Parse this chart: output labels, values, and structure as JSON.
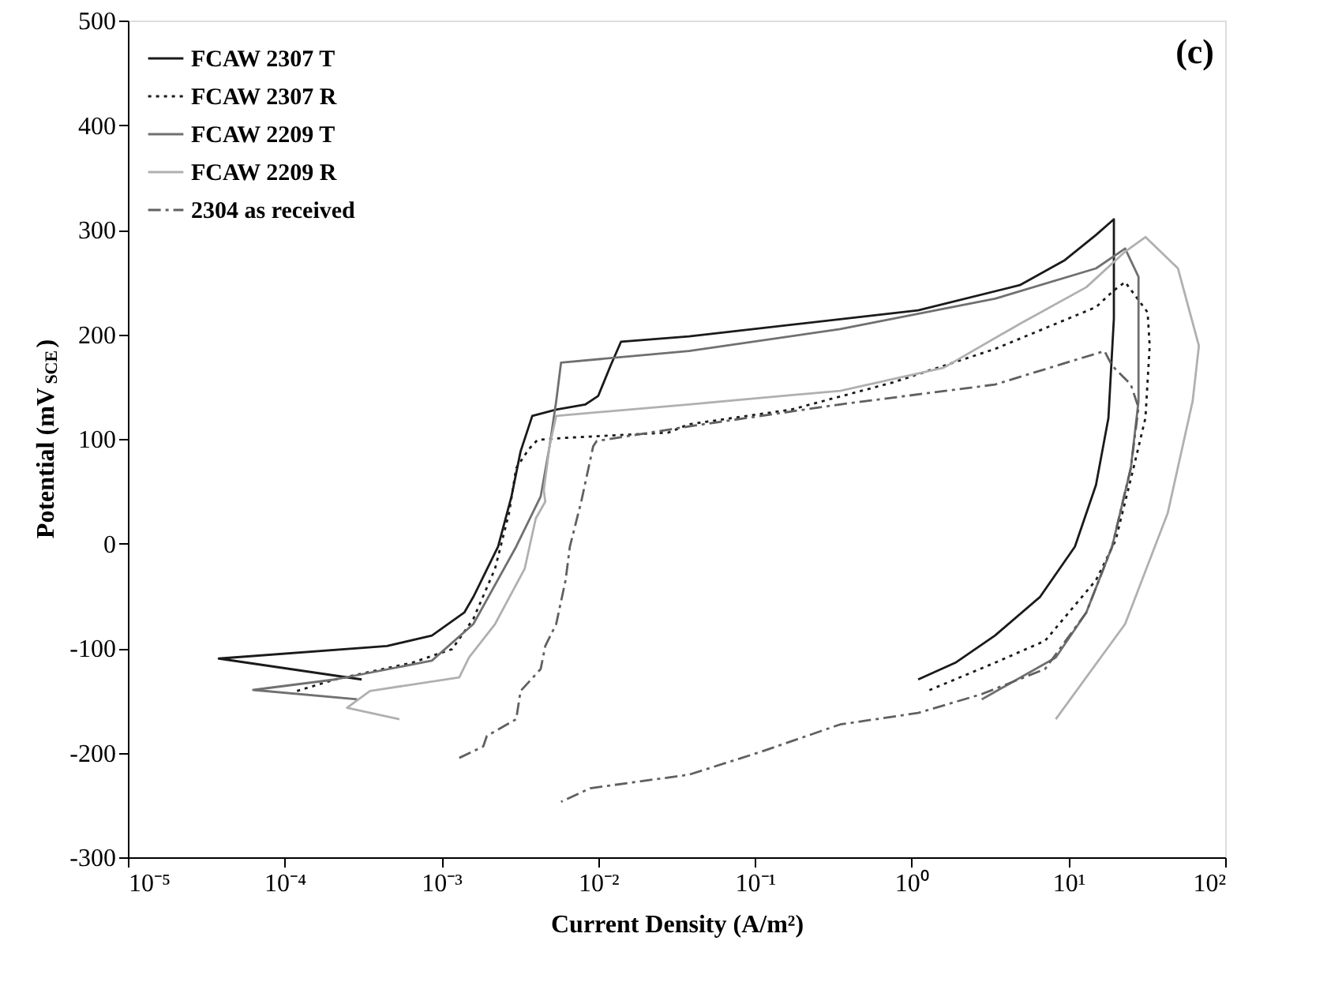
{
  "chart_data": {
    "type": "line",
    "xlabel": "Current Density (A/m²)",
    "ylabel": "Potential (mV$_{SCE}$)",
    "annotations": [
      "(c)"
    ],
    "log": "x",
    "xlim": [
      1e-05,
      100
    ],
    "xticks": [
      {
        "value": 1e-05,
        "label": "10⁻⁵"
      },
      {
        "value": 0.0001,
        "label": "10⁻⁴"
      },
      {
        "value": 0.001,
        "label": "10⁻³"
      },
      {
        "value": 0.01,
        "label": "10⁻²"
      },
      {
        "value": 0.1,
        "label": "10⁻¹"
      },
      {
        "value": 1,
        "label": "10⁰"
      },
      {
        "value": 10,
        "label": "10¹"
      },
      {
        "value": 100,
        "label": "10²"
      }
    ],
    "ylim": [
      -300,
      500
    ],
    "yticks": [
      -300,
      -200,
      -100,
      0,
      100,
      200,
      300,
      400,
      500
    ],
    "grid": false,
    "legend": "top left",
    "marker": "none",
    "series": [
      {
        "name": "FCAW 2307 T",
        "color": "#1a1a1a",
        "line_style": "solid",
        "x": [
          0.00031,
          3.8e-05,
          0.00045,
          0.00087,
          0.0014,
          0.0016,
          0.0023,
          0.0028,
          0.0032,
          0.0038,
          0.0054,
          0.0083,
          0.01,
          0.012,
          0.014,
          0.038,
          1.1,
          4.9,
          9.5,
          15,
          19.5,
          19.5,
          18,
          15,
          11,
          6.6,
          3.4,
          1.9,
          1.1
        ],
        "values": [
          -130,
          -110,
          -98,
          -88,
          -66,
          -51,
          -3,
          45,
          88,
          122,
          128,
          133,
          141,
          170,
          193,
          198,
          223,
          247,
          271,
          295,
          310,
          215,
          120,
          56,
          -3,
          -51,
          -88,
          -114,
          -130
        ]
      },
      {
        "name": "FCAW 2307 R",
        "color": "#1a1a1a",
        "line_style": "dotted",
        "x": [
          0.00012,
          0.00021,
          0.00065,
          0.00117,
          0.0016,
          0.0022,
          0.0027,
          0.003,
          0.0036,
          0.0041,
          0.0062,
          0.028,
          0.038,
          0.17,
          0.76,
          3.4,
          15,
          19.5,
          23,
          32,
          33,
          31,
          26,
          20,
          15,
          7.1,
          3.4,
          1.26
        ],
        "values": [
          -141,
          -130,
          -114,
          -101,
          -72,
          -24,
          29,
          72,
          90,
          99,
          101,
          106,
          114,
          128,
          154,
          186,
          226,
          242,
          250,
          221,
          189,
          120,
          72,
          3,
          -35,
          -93,
          -114,
          -141
        ]
      },
      {
        "name": "FCAW 2209 T",
        "color": "#707070",
        "line_style": "solid",
        "x": [
          0.00029,
          6.3e-05,
          0.00021,
          0.00087,
          0.0016,
          0.003,
          0.0043,
          0.0049,
          0.0054,
          0.0058,
          0.038,
          0.35,
          3.4,
          15,
          23,
          28,
          28,
          25,
          19,
          13,
          8.3,
          2.8
        ],
        "values": [
          -149,
          -140,
          -130,
          -112,
          -77,
          -3,
          45,
          93,
          136,
          173,
          184,
          205,
          234,
          263,
          282,
          255,
          136,
          72,
          -3,
          -66,
          -109,
          -149
        ]
      },
      {
        "name": "FCAW 2209 R",
        "color": "#b0b0b0",
        "line_style": "solid",
        "x": [
          0.00054,
          0.00025,
          0.00035,
          0.0013,
          0.0015,
          0.0022,
          0.0034,
          0.004,
          0.0046,
          0.0045,
          0.0049,
          0.0054,
          0.038,
          0.35,
          1.6,
          4.9,
          13,
          23,
          31,
          50,
          68,
          62,
          43,
          23,
          8.3
        ],
        "values": [
          -168,
          -157,
          -141,
          -128,
          -109,
          -77,
          -24,
          24,
          40,
          51,
          93,
          122,
          133,
          146,
          168,
          210,
          245,
          279,
          293,
          263,
          189,
          136,
          29,
          -77,
          -168
        ]
      },
      {
        "name": "2304 as received",
        "color": "#606060",
        "line_style": "dashdot",
        "x": [
          0.0013,
          0.00185,
          0.00195,
          0.003,
          0.0032,
          0.0043,
          0.0046,
          0.0054,
          0.0062,
          0.0066,
          0.0078,
          0.0093,
          0.0098,
          0.038,
          0.35,
          3.4,
          17,
          19,
          25,
          28,
          25,
          19,
          13,
          7.1,
          2.8,
          1.1,
          0.35,
          0.11,
          0.038,
          0.0089,
          0.0058
        ],
        "values": [
          -205,
          -194,
          -184,
          -168,
          -141,
          -120,
          -98,
          -77,
          -35,
          -3,
          40,
          93,
          98,
          112,
          133,
          152,
          184,
          170,
          152,
          130,
          72,
          -3,
          -66,
          -120,
          -144,
          -162,
          -173,
          -199,
          -221,
          -234,
          -247
        ]
      }
    ]
  }
}
